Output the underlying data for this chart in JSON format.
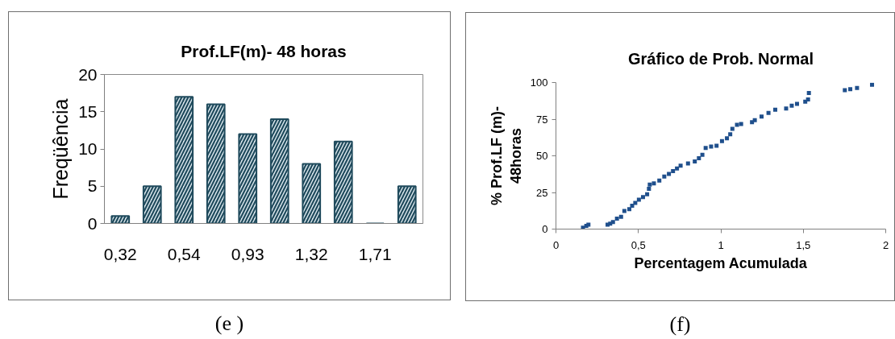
{
  "chart_data": [
    {
      "type": "bar",
      "title": "Prof.LF(m)- 48 horas",
      "ylabel": "Freqüência",
      "categories": [
        "0,32",
        null,
        "0,54",
        null,
        "0,93",
        null,
        "1,32",
        null,
        "1,71",
        null
      ],
      "values": [
        1,
        5,
        17,
        16,
        12,
        14,
        8,
        11,
        0,
        5
      ],
      "color": "#1f4a5c",
      "ylim": [
        0,
        20
      ],
      "yticks": [
        0,
        5,
        10,
        15,
        20
      ],
      "grid": false,
      "annotations": [
        "(e )"
      ]
    },
    {
      "type": "scatter",
      "title": "Gráfico de Prob. Normal",
      "xlabel": "Percentagem Acumulada",
      "ylabel": "% Prof.LF (m)- 48horas",
      "color": "#1f4f8c",
      "marker": "square",
      "grid": false,
      "x": [
        0.164,
        0.184,
        0.197,
        0.313,
        0.329,
        0.346,
        0.37,
        0.395,
        0.415,
        0.445,
        0.462,
        0.481,
        0.503,
        0.528,
        0.553,
        0.564,
        0.569,
        0.594,
        0.627,
        0.657,
        0.685,
        0.71,
        0.734,
        0.756,
        0.801,
        0.842,
        0.867,
        0.888,
        0.908,
        0.941,
        0.974,
        1.007,
        1.037,
        1.057,
        1.07,
        1.098,
        1.123,
        1.189,
        1.206,
        1.247,
        1.289,
        1.33,
        1.396,
        1.43,
        1.462,
        1.512,
        1.529,
        1.534,
        1.752,
        1.785,
        1.826,
        1.917
      ],
      "values": [
        0.9,
        2.2,
        3.0,
        3.0,
        3.7,
        4.8,
        7.1,
        8.4,
        12.3,
        13.6,
        16,
        17.8,
        20,
        21.9,
        23.8,
        27.5,
        30.3,
        31.2,
        33.1,
        35.9,
        37.7,
        39.6,
        41.4,
        43.3,
        44.8,
        46.1,
        48.3,
        50.7,
        55.4,
        56.3,
        56.9,
        60,
        61.9,
        64.7,
        68.4,
        71.2,
        71.7,
        73,
        74.3,
        76.8,
        79.2,
        81.4,
        82.3,
        84.2,
        85.5,
        87,
        88.5,
        92.9,
        94.8,
        95.4,
        96.3,
        98.5
      ],
      "xlim": [
        0,
        2
      ],
      "xticks": [
        0,
        {
          "value": 0.5,
          "label": "0,5"
        },
        1,
        {
          "value": 1.5,
          "label": "1,5"
        },
        2
      ],
      "ylim": [
        0,
        100
      ],
      "yticks": [
        0,
        25,
        50,
        75,
        100
      ],
      "annotations": [
        "(f)"
      ]
    }
  ]
}
